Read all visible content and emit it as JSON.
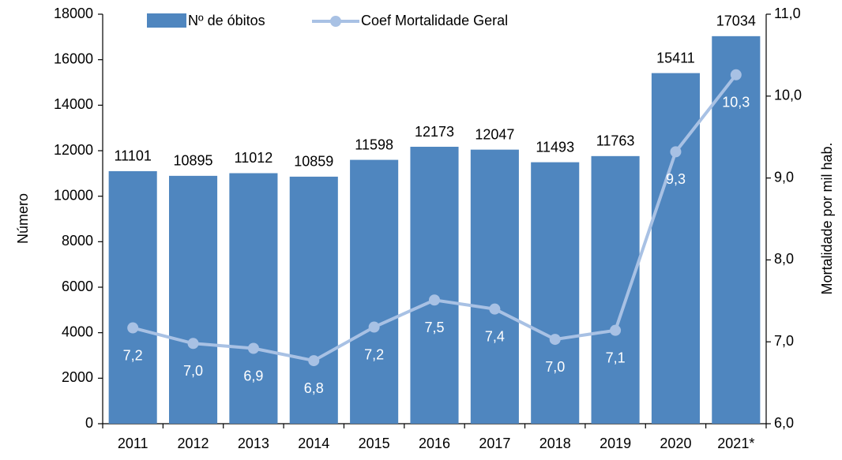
{
  "chart_data": {
    "type": "bar_line",
    "categories": [
      "2011",
      "2012",
      "2013",
      "2014",
      "2015",
      "2016",
      "2017",
      "2018",
      "2019",
      "2020",
      "2021*"
    ],
    "series": [
      {
        "name": "Nº de óbitos",
        "type": "bar",
        "color": "#4f86bf",
        "axis": "y",
        "values": [
          11101,
          10895,
          11012,
          10859,
          11598,
          12173,
          12047,
          11493,
          11763,
          15411,
          17034
        ]
      },
      {
        "name": "Coef Mortalidade Geral",
        "type": "line",
        "color": "#a8c1e4",
        "axis": "y2",
        "values": [
          7.17,
          6.98,
          6.92,
          6.77,
          7.18,
          7.51,
          7.4,
          7.03,
          7.14,
          9.32,
          10.26
        ],
        "value_labels": [
          "7,2",
          "7,0",
          "6,9",
          "6,8",
          "7,2",
          "7,5",
          "7,4",
          "7,0",
          "7,1",
          "9,3",
          "10,3"
        ]
      }
    ],
    "ylabel": "Número",
    "y2label": "Mortalidade por mil hab.",
    "ylim": [
      0,
      18000
    ],
    "yticks": [
      0,
      2000,
      4000,
      6000,
      8000,
      10000,
      12000,
      14000,
      16000,
      18000
    ],
    "y2lim": [
      6,
      11
    ],
    "y2ticks": [
      {
        "value": 6,
        "label": "6,0"
      },
      {
        "value": 7,
        "label": "7,0"
      },
      {
        "value": 8,
        "label": "8,0"
      },
      {
        "value": 9,
        "label": "9,0"
      },
      {
        "value": 10,
        "label": "10,0"
      },
      {
        "value": 11,
        "label": "11,0"
      }
    ],
    "legend": "top"
  }
}
